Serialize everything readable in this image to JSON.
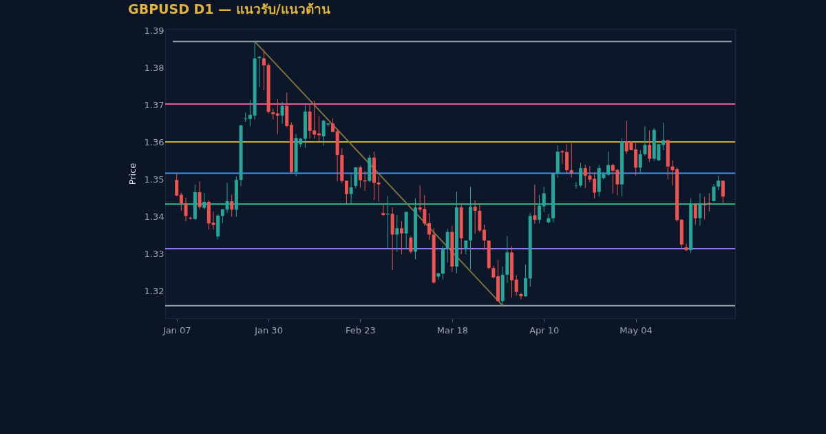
{
  "chart_data": {
    "type": "candlestick",
    "title": "GBPUSD D1 — แนวรับ/แนวต้าน",
    "ylabel": "Price",
    "categories": [
      "Jan 07",
      null,
      null,
      null,
      null,
      null,
      null,
      null,
      null,
      null,
      null,
      null,
      null,
      null,
      null,
      null,
      null,
      null,
      null,
      null,
      "Jan 30",
      null,
      null,
      null,
      null,
      null,
      null,
      null,
      null,
      null,
      null,
      null,
      null,
      null,
      null,
      null,
      null,
      null,
      null,
      null,
      "Feb 23",
      null,
      null,
      null,
      null,
      null,
      null,
      null,
      null,
      null,
      null,
      null,
      null,
      null,
      null,
      null,
      null,
      null,
      null,
      null,
      "Mar 18",
      null,
      null,
      null,
      null,
      null,
      null,
      null,
      null,
      null,
      null,
      null,
      null,
      null,
      null,
      null,
      null,
      null,
      null,
      null,
      "Apr 10",
      null,
      null,
      null,
      null,
      null,
      null,
      null,
      null,
      null,
      null,
      null,
      null,
      null,
      null,
      null,
      null,
      null,
      null,
      null,
      "May 04",
      null,
      null,
      null,
      null,
      null,
      null,
      null,
      null,
      null,
      null,
      null,
      null,
      null,
      null,
      null,
      null,
      null,
      null,
      null
    ],
    "ohlc": [
      [
        1.3498,
        1.3514,
        1.3454,
        1.3456
      ],
      [
        1.3458,
        1.3464,
        1.3415,
        1.3435
      ],
      [
        1.3435,
        1.345,
        1.3387,
        1.3401
      ],
      [
        1.3396,
        1.3399,
        1.3391,
        1.3394
      ],
      [
        1.3393,
        1.3486,
        1.339,
        1.3465
      ],
      [
        1.3465,
        1.3494,
        1.3419,
        1.3425
      ],
      [
        1.3423,
        1.3463,
        1.3418,
        1.3439
      ],
      [
        1.3439,
        1.3444,
        1.3364,
        1.3381
      ],
      [
        1.3383,
        1.3413,
        1.3365,
        1.3377
      ],
      [
        1.3346,
        1.3406,
        1.3338,
        1.3402
      ],
      [
        1.3401,
        1.342,
        1.3382,
        1.3419
      ],
      [
        1.3418,
        1.349,
        1.3409,
        1.3441
      ],
      [
        1.3441,
        1.3459,
        1.3399,
        1.3418
      ],
      [
        1.3418,
        1.3507,
        1.3399,
        1.3498
      ],
      [
        1.3498,
        1.3645,
        1.3481,
        1.3645
      ],
      [
        1.3661,
        1.3679,
        1.3654,
        1.3663
      ],
      [
        1.3662,
        1.3713,
        1.3642,
        1.3673
      ],
      [
        1.3671,
        1.3868,
        1.366,
        1.3825
      ],
      [
        1.3826,
        1.3831,
        1.3748,
        1.3829
      ],
      [
        1.3825,
        1.3849,
        1.3739,
        1.3806
      ],
      [
        1.3807,
        1.3812,
        1.3676,
        1.3681
      ],
      [
        1.368,
        1.3691,
        1.366,
        1.3675
      ],
      [
        1.3677,
        1.3715,
        1.3621,
        1.3671
      ],
      [
        1.3671,
        1.3708,
        1.3649,
        1.3697
      ],
      [
        1.3697,
        1.3733,
        1.364,
        1.3643
      ],
      [
        1.3646,
        1.3653,
        1.3517,
        1.3519
      ],
      [
        1.3519,
        1.3622,
        1.3507,
        1.3611
      ],
      [
        1.3594,
        1.3612,
        1.3587,
        1.3609
      ],
      [
        1.3609,
        1.3699,
        1.3584,
        1.3682
      ],
      [
        1.3682,
        1.3699,
        1.3609,
        1.363
      ],
      [
        1.3631,
        1.3711,
        1.3609,
        1.362
      ],
      [
        1.3623,
        1.367,
        1.3602,
        1.3618
      ],
      [
        1.3615,
        1.366,
        1.359,
        1.3657
      ],
      [
        1.3647,
        1.3651,
        1.3642,
        1.365
      ],
      [
        1.365,
        1.3664,
        1.3626,
        1.3627
      ],
      [
        1.3629,
        1.3633,
        1.3494,
        1.3565
      ],
      [
        1.3565,
        1.3583,
        1.3489,
        1.3495
      ],
      [
        1.3496,
        1.3496,
        1.3434,
        1.346
      ],
      [
        1.346,
        1.3514,
        1.3434,
        1.3478
      ],
      [
        1.3482,
        1.3532,
        1.3475,
        1.3532
      ],
      [
        1.3532,
        1.3536,
        1.3477,
        1.3497
      ],
      [
        1.3497,
        1.3523,
        1.3469,
        1.3494
      ],
      [
        1.3495,
        1.3565,
        1.3492,
        1.3558
      ],
      [
        1.3558,
        1.3574,
        1.3444,
        1.349
      ],
      [
        1.3491,
        1.3507,
        1.344,
        1.3486
      ],
      [
        1.3409,
        1.3435,
        1.3401,
        1.3404
      ],
      [
        1.3405,
        1.3455,
        1.3314,
        1.3407
      ],
      [
        1.3407,
        1.3424,
        1.3255,
        1.3351
      ],
      [
        1.3351,
        1.3404,
        1.3304,
        1.3368
      ],
      [
        1.3368,
        1.3387,
        1.3298,
        1.3354
      ],
      [
        1.3354,
        1.3412,
        1.3313,
        1.3412
      ],
      [
        1.3343,
        1.3347,
        1.33,
        1.3305
      ],
      [
        1.3305,
        1.3449,
        1.3284,
        1.3424
      ],
      [
        1.3424,
        1.3483,
        1.3411,
        1.3418
      ],
      [
        1.342,
        1.3457,
        1.3375,
        1.3381
      ],
      [
        1.3382,
        1.3408,
        1.3337,
        1.3351
      ],
      [
        1.3351,
        1.3368,
        1.3219,
        1.3222
      ],
      [
        1.3238,
        1.3247,
        1.323,
        1.3247
      ],
      [
        1.3246,
        1.3321,
        1.323,
        1.3313
      ],
      [
        1.3313,
        1.3366,
        1.3276,
        1.3358
      ],
      [
        1.3358,
        1.3375,
        1.325,
        1.3265
      ],
      [
        1.3265,
        1.3467,
        1.3247,
        1.3424
      ],
      [
        1.3424,
        1.3436,
        1.3298,
        1.3341
      ],
      [
        1.3313,
        1.3335,
        1.3298,
        1.3335
      ],
      [
        1.3335,
        1.348,
        1.3258,
        1.3426
      ],
      [
        1.3426,
        1.3443,
        1.3353,
        1.3415
      ],
      [
        1.3415,
        1.3435,
        1.3358,
        1.3362
      ],
      [
        1.3364,
        1.3378,
        1.331,
        1.3335
      ],
      [
        1.3335,
        1.3335,
        1.3258,
        1.3261
      ],
      [
        1.3261,
        1.3267,
        1.3233,
        1.3236
      ],
      [
        1.3239,
        1.3283,
        1.3171,
        1.3172
      ],
      [
        1.3172,
        1.3265,
        1.3162,
        1.3243
      ],
      [
        1.3243,
        1.3347,
        1.3221,
        1.3303
      ],
      [
        1.3303,
        1.332,
        1.3182,
        1.3228
      ],
      [
        1.323,
        1.3242,
        1.3187,
        1.3197
      ],
      [
        1.3191,
        1.3195,
        1.3177,
        1.3185
      ],
      [
        1.3185,
        1.327,
        1.3184,
        1.3234
      ],
      [
        1.3233,
        1.3409,
        1.3211,
        1.3401
      ],
      [
        1.3403,
        1.3485,
        1.338,
        1.3391
      ],
      [
        1.3391,
        1.3458,
        1.3381,
        1.3429
      ],
      [
        1.3427,
        1.348,
        1.3412,
        1.3462
      ],
      [
        1.3384,
        1.3406,
        1.3381,
        1.3395
      ],
      [
        1.3395,
        1.3515,
        1.3384,
        1.3515
      ],
      [
        1.3515,
        1.3591,
        1.3504,
        1.3574
      ],
      [
        1.3575,
        1.3578,
        1.3541,
        1.3572
      ],
      [
        1.3573,
        1.3594,
        1.3517,
        1.3524
      ],
      [
        1.3524,
        1.3597,
        1.3504,
        1.3517
      ],
      [
        1.3482,
        1.3493,
        1.3475,
        1.3483
      ],
      [
        1.3483,
        1.3544,
        1.3478,
        1.353
      ],
      [
        1.353,
        1.3539,
        1.3476,
        1.3509
      ],
      [
        1.351,
        1.3535,
        1.3492,
        1.3499
      ],
      [
        1.3501,
        1.3518,
        1.3448,
        1.3464
      ],
      [
        1.3466,
        1.3538,
        1.3454,
        1.353
      ],
      [
        1.3503,
        1.352,
        1.3499,
        1.3514
      ],
      [
        1.3512,
        1.3575,
        1.3509,
        1.3538
      ],
      [
        1.3538,
        1.3541,
        1.3462,
        1.3523
      ],
      [
        1.3525,
        1.3528,
        1.3457,
        1.3486
      ],
      [
        1.3486,
        1.361,
        1.3454,
        1.3602
      ],
      [
        1.3602,
        1.3657,
        1.3568,
        1.3575
      ],
      [
        1.36,
        1.3602,
        1.3578,
        1.3578
      ],
      [
        1.358,
        1.3597,
        1.351,
        1.3531
      ],
      [
        1.3531,
        1.3578,
        1.3514,
        1.3567
      ],
      [
        1.3567,
        1.3642,
        1.3563,
        1.3592
      ],
      [
        1.3592,
        1.3631,
        1.3546,
        1.3555
      ],
      [
        1.3555,
        1.3637,
        1.3549,
        1.3632
      ],
      [
        1.3551,
        1.3596,
        1.3548,
        1.3594
      ],
      [
        1.3592,
        1.3652,
        1.3578,
        1.3605
      ],
      [
        1.3605,
        1.3605,
        1.3499,
        1.3534
      ],
      [
        1.3534,
        1.3551,
        1.3483,
        1.3524
      ],
      [
        1.3527,
        1.3532,
        1.3386,
        1.339
      ],
      [
        1.3391,
        1.3393,
        1.3314,
        1.3324
      ],
      [
        1.3317,
        1.3327,
        1.3307,
        1.3309
      ],
      [
        1.3309,
        1.3449,
        1.3301,
        1.3432
      ],
      [
        1.3432,
        1.3432,
        1.3378,
        1.3395
      ],
      [
        1.3395,
        1.3462,
        1.3375,
        1.3432
      ],
      [
        1.3432,
        1.3453,
        1.3392,
        1.343
      ],
      [
        1.3436,
        1.3462,
        1.3413,
        1.3433
      ],
      [
        1.3441,
        1.3487,
        1.344,
        1.348
      ],
      [
        1.348,
        1.3509,
        1.347,
        1.3496
      ],
      [
        1.3496,
        1.3496,
        1.3435,
        1.3453
      ]
    ],
    "colors": [
      "#ef5350",
      "#ef5350",
      "#ef5350",
      "#ef5350",
      "#26a69a",
      "#ef5350",
      "#26a69a",
      "#ef5350",
      "#ef5350",
      "#26a69a",
      "#26a69a",
      "#26a69a",
      "#ef5350",
      "#26a69a",
      "#26a69a",
      "#26a69a",
      "#26a69a",
      "#26a69a",
      "#26a69a",
      "#ef5350",
      "#ef5350",
      "#ef5350",
      "#ef5350",
      "#26a69a",
      "#ef5350",
      "#ef5350",
      "#26a69a",
      "#26a69a",
      "#26a69a",
      "#ef5350",
      "#ef5350",
      "#ef5350",
      "#26a69a",
      "#26a69a",
      "#ef5350",
      "#ef5350",
      "#ef5350",
      "#ef5350",
      "#26a69a",
      "#26a69a",
      "#ef5350",
      "#ef5350",
      "#26a69a",
      "#ef5350",
      "#ef5350",
      "#ef5350",
      "#26a69a",
      "#ef5350",
      "#26a69a",
      "#ef5350",
      "#26a69a",
      "#ef5350",
      "#26a69a",
      "#ef5350",
      "#ef5350",
      "#ef5350",
      "#ef5350",
      "#26a69a",
      "#26a69a",
      "#26a69a",
      "#ef5350",
      "#26a69a",
      "#ef5350",
      "#26a69a",
      "#26a69a",
      "#ef5350",
      "#ef5350",
      "#ef5350",
      "#ef5350",
      "#ef5350",
      "#ef5350",
      "#26a69a",
      "#26a69a",
      "#ef5350",
      "#ef5350",
      "#ef5350",
      "#26a69a",
      "#26a69a",
      "#ef5350",
      "#26a69a",
      "#26a69a",
      "#26a69a",
      "#26a69a",
      "#26a69a",
      "#ef5350",
      "#ef5350",
      "#ef5350",
      "#26a69a",
      "#26a69a",
      "#ef5350",
      "#ef5350",
      "#ef5350",
      "#26a69a",
      "#26a69a",
      "#26a69a",
      "#ef5350",
      "#ef5350",
      "#26a69a",
      "#ef5350",
      "#ef5350",
      "#ef5350",
      "#26a69a",
      "#26a69a",
      "#ef5350",
      "#26a69a",
      "#26a69a",
      "#26a69a",
      "#ef5350",
      "#ef5350",
      "#ef5350",
      "#ef5350",
      "#ef5350",
      "#26a69a",
      "#ef5350",
      "#26a69a",
      "#ef5350",
      "#ef5350",
      "#26a69a",
      "#26a69a",
      "#ef5350"
    ],
    "series": [
      {
        "type": "line",
        "color": "#8a7a3c",
        "values": [
          null,
          null,
          null,
          null,
          null,
          null,
          null,
          null,
          null,
          null,
          null,
          null,
          null,
          null,
          null,
          null,
          null,
          1.387,
          null,
          null,
          null,
          null,
          null,
          null,
          null,
          null,
          null,
          null,
          null,
          null,
          null,
          null,
          null,
          null,
          null,
          null,
          null,
          null,
          null,
          null,
          null,
          null,
          null,
          null,
          null,
          null,
          null,
          null,
          null,
          null,
          null,
          null,
          null,
          null,
          null,
          null,
          null,
          null,
          null,
          null,
          null,
          null,
          null,
          null,
          null,
          null,
          null,
          null,
          null,
          null,
          null,
          1.316,
          null,
          null,
          null,
          null,
          null,
          null,
          null,
          null,
          null,
          null,
          null,
          null,
          null,
          null,
          null,
          null,
          null,
          null,
          null,
          null,
          null,
          null,
          null,
          null,
          null,
          null,
          null,
          null,
          null,
          null,
          null,
          null,
          null,
          null,
          null,
          null,
          null,
          null,
          null,
          null,
          null,
          null,
          null,
          null,
          null,
          null,
          null,
          null
        ]
      }
    ],
    "ref_lines": [
      {
        "axis": "y",
        "value": 1.387,
        "color": "#9aa4b0"
      },
      {
        "axis": "y",
        "value": 1.3702,
        "color": "#d9609a"
      },
      {
        "axis": "y",
        "value": 1.36,
        "color": "#d4a72c"
      },
      {
        "axis": "y",
        "value": 1.3516,
        "color": "#4a90e2"
      },
      {
        "axis": "y",
        "value": 1.3433,
        "color": "#2fbf8f"
      },
      {
        "axis": "y",
        "value": 1.3313,
        "color": "#8c7ae6"
      },
      {
        "axis": "y",
        "value": 1.316,
        "color": "#9aa4b0"
      }
    ],
    "ylim": [
      1.3126,
      1.3904
    ],
    "yticks": [
      1.32,
      1.33,
      1.34,
      1.35,
      1.36,
      1.37,
      1.38,
      1.39
    ],
    "grid": false
  }
}
